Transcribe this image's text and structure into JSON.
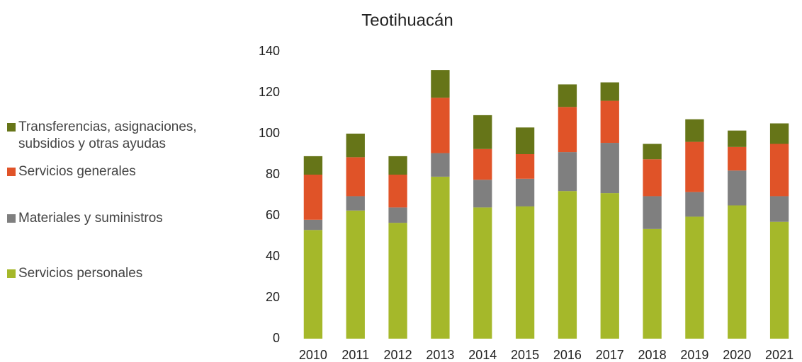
{
  "chart_data": {
    "type": "stacked_bar",
    "title": "Teotihuacán",
    "categories": [
      "2010",
      "2011",
      "2012",
      "2013",
      "2014",
      "2015",
      "2016",
      "2017",
      "2018",
      "2019",
      "2020",
      "2021"
    ],
    "series": [
      {
        "name": "Servicios personales",
        "color": "#a5b82a",
        "values": [
          53,
          62.5,
          56.5,
          79,
          64,
          64.5,
          72,
          71,
          53.5,
          59.5,
          65,
          57
        ]
      },
      {
        "name": "Materiales y suministros",
        "color": "#7f7f7f",
        "values": [
          5,
          7,
          7.5,
          11.5,
          13.5,
          13.5,
          19,
          24.5,
          16,
          12,
          17,
          12.5
        ]
      },
      {
        "name": "Servicios generales",
        "color": "#e05328",
        "values": [
          22,
          19,
          16,
          27,
          15,
          12,
          22,
          20.5,
          18,
          24.5,
          11.5,
          25.5
        ]
      },
      {
        "name": "Transferencias, asignaciones, subsidios y otras ayudas",
        "color": "#667518",
        "values": [
          9,
          11.5,
          9,
          13.5,
          16.5,
          13,
          11,
          9,
          7.5,
          11,
          8,
          10
        ]
      }
    ],
    "ylim": [
      0,
      140
    ],
    "yticks": [
      0,
      20,
      40,
      60,
      80,
      100,
      120,
      140
    ],
    "grid": false,
    "legend": "left"
  }
}
